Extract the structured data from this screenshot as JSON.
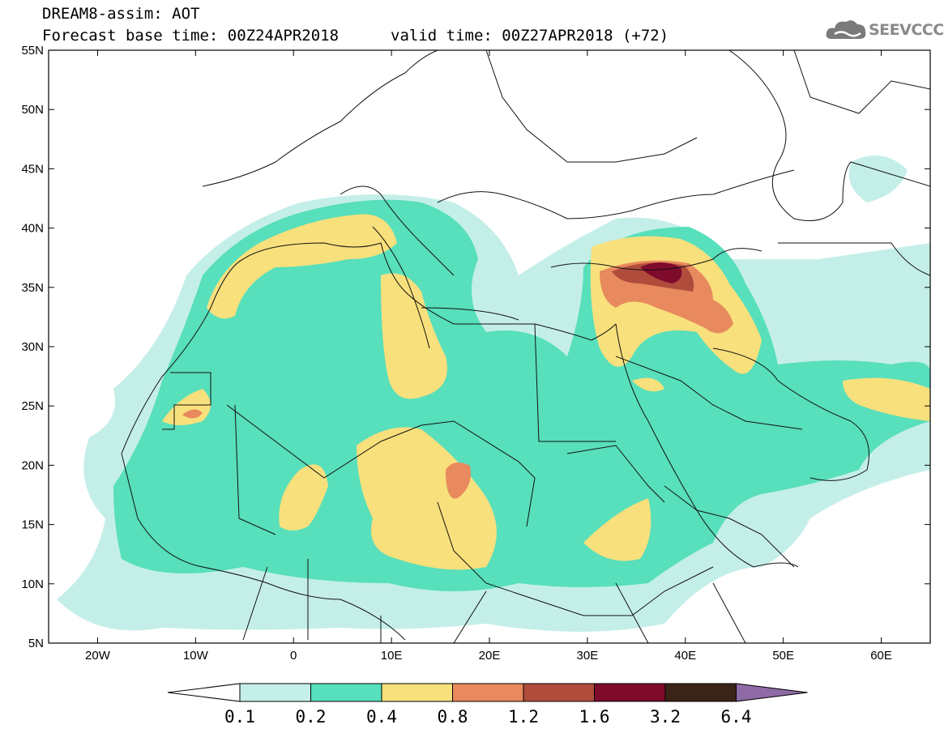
{
  "header": {
    "line1": "DREAM8-assim: AOT",
    "line2": "Forecast base time: 00Z24APR2018",
    "valid": "valid time: 00Z27APR2018 (+72)",
    "logo_text": "SEEVCCC"
  },
  "map": {
    "lat_ticks": [
      "55N",
      "50N",
      "45N",
      "40N",
      "35N",
      "30N",
      "25N",
      "20N",
      "15N",
      "10N",
      "5N"
    ],
    "lon_ticks": [
      "20W",
      "10W",
      "0",
      "10E",
      "20E",
      "30E",
      "40E",
      "50E",
      "60E"
    ],
    "extent": {
      "lon": [
        -25,
        65
      ],
      "lat": [
        5,
        55
      ]
    }
  },
  "colorbar": {
    "labels": [
      "0.1",
      "0.2",
      "0.4",
      "0.8",
      "1.2",
      "1.6",
      "3.2",
      "6.4"
    ],
    "colors": [
      "#c4efe8",
      "#58dfbc",
      "#f8e07c",
      "#e88a5e",
      "#b04c3c",
      "#7e0a2c",
      "#3a2418",
      "#8e6aa6"
    ]
  }
}
